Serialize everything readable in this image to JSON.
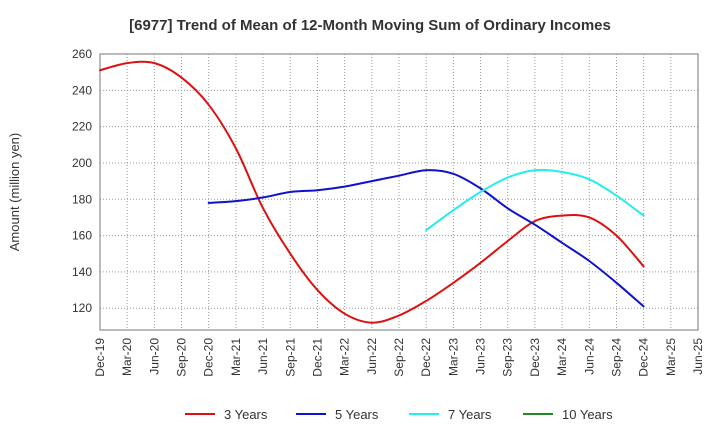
{
  "chart_data": {
    "type": "line",
    "title": "[6977]  Trend of Mean of 12-Month Moving Sum of Ordinary Incomes",
    "xlabel": "",
    "ylabel": "Amount (million yen)",
    "ylim": [
      108,
      260
    ],
    "yticks": [
      120,
      140,
      160,
      180,
      200,
      220,
      240,
      260
    ],
    "categories": [
      "Dec-19",
      "Mar-20",
      "Jun-20",
      "Sep-20",
      "Dec-20",
      "Mar-21",
      "Jun-21",
      "Sep-21",
      "Dec-21",
      "Mar-22",
      "Jun-22",
      "Sep-22",
      "Dec-22",
      "Mar-23",
      "Jun-23",
      "Sep-23",
      "Dec-23",
      "Mar-24",
      "Jun-24",
      "Sep-24",
      "Dec-24",
      "Mar-25",
      "Jun-25"
    ],
    "grid": true,
    "legend_position": "bottom",
    "series": [
      {
        "name": "3 Years",
        "color": "#dd1111",
        "values": [
          251,
          255,
          255,
          247,
          232,
          208,
          175,
          150,
          130,
          117,
          112,
          116,
          124,
          134,
          145,
          157,
          168,
          171,
          170,
          160,
          143,
          null,
          null
        ]
      },
      {
        "name": "5 Years",
        "color": "#1111cc",
        "values": [
          null,
          null,
          null,
          null,
          178,
          179,
          181,
          184,
          185,
          187,
          190,
          193,
          196,
          194,
          186,
          175,
          166,
          156,
          146,
          134,
          121,
          null,
          null
        ]
      },
      {
        "name": "7 Years",
        "color": "#22eeee",
        "values": [
          null,
          null,
          null,
          null,
          null,
          null,
          null,
          null,
          null,
          null,
          null,
          null,
          163,
          174,
          184,
          192,
          196,
          195,
          191,
          182,
          171,
          null,
          null
        ]
      },
      {
        "name": "10 Years",
        "color": "#228822",
        "values": [
          null,
          null,
          null,
          null,
          null,
          null,
          null,
          null,
          null,
          null,
          null,
          null,
          null,
          null,
          null,
          null,
          null,
          null,
          null,
          null,
          null,
          null,
          null
        ]
      }
    ]
  }
}
